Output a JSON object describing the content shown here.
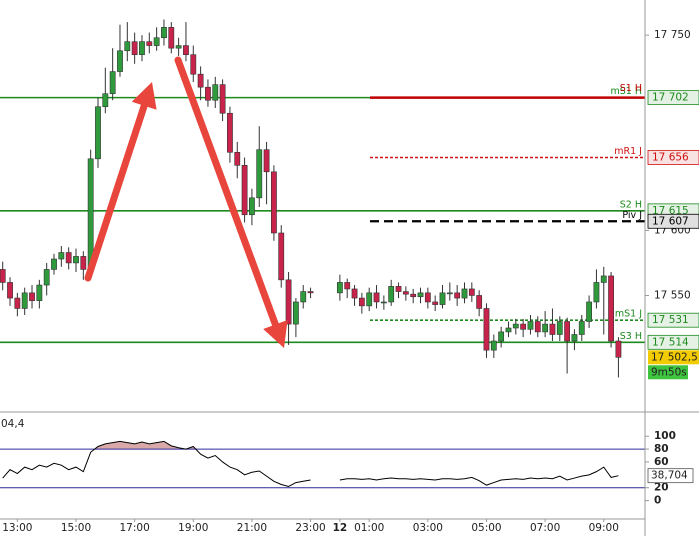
{
  "chart_data": {
    "type": "candlestick",
    "categories": [
      null,
      null,
      "13:00",
      null,
      null,
      null,
      null,
      null,
      null,
      null,
      "15:00",
      null,
      null,
      null,
      null,
      null,
      null,
      null,
      "17:00",
      null,
      null,
      null,
      null,
      null,
      null,
      null,
      "19:00",
      null,
      null,
      null,
      null,
      null,
      null,
      null,
      "21:00",
      null,
      null,
      null,
      null,
      null,
      null,
      null,
      "23:00",
      null,
      null,
      null,
      "12",
      null,
      null,
      null,
      "01:00",
      null,
      null,
      null,
      null,
      null,
      null,
      null,
      "03:00",
      null,
      null,
      null,
      null,
      null,
      null,
      null,
      "05:00",
      null,
      null,
      null,
      null,
      null,
      null,
      null,
      "07:00",
      null,
      null,
      null,
      null,
      null,
      null,
      null,
      "09:00",
      null,
      null
    ],
    "open": [
      17570,
      17560,
      17548,
      17540,
      17552,
      17546,
      17558,
      17570,
      17578,
      17583,
      17575,
      17580,
      17570,
      17655,
      17695,
      17705,
      17722,
      17738,
      17745,
      17735,
      17745,
      17742,
      17748,
      17756,
      17740,
      17742,
      17735,
      17720,
      17710,
      17700,
      17712,
      17690,
      17660,
      17650,
      17612,
      17625,
      17662,
      17645,
      17598,
      17562,
      17528,
      17545,
      17553,
      null,
      null,
      null,
      17552,
      17560,
      17555,
      17548,
      17542,
      17552,
      17545,
      17545,
      17557,
      17553,
      17551,
      17549,
      17552,
      17545,
      17543,
      17552,
      17552,
      17548,
      17555,
      17550,
      17540,
      17508,
      17515,
      17522,
      17525,
      17528,
      17524,
      17530,
      17522,
      17528,
      17520,
      17530,
      17515,
      17520,
      17530,
      17545,
      17560,
      17565,
      17515
    ],
    "high": [
      17576,
      17564,
      17552,
      17556,
      17558,
      17562,
      17575,
      17582,
      17588,
      17587,
      17586,
      17584,
      17662,
      17702,
      17725,
      17740,
      17758,
      17760,
      17752,
      17750,
      17752,
      17756,
      17762,
      17760,
      17748,
      17760,
      17742,
      17726,
      17716,
      17718,
      17716,
      17695,
      17668,
      17656,
      17632,
      17680,
      17668,
      17650,
      17604,
      17568,
      17548,
      17558,
      17556,
      null,
      null,
      null,
      17566,
      17563,
      17558,
      17552,
      17556,
      17558,
      17550,
      17562,
      17560,
      17557,
      17555,
      17556,
      17556,
      17550,
      17558,
      17560,
      17558,
      17560,
      17560,
      17554,
      17544,
      17520,
      17526,
      17530,
      17532,
      17532,
      17535,
      17534,
      17538,
      17540,
      17534,
      17533,
      17524,
      17535,
      17550,
      17570,
      17572,
      17568,
      17518
    ],
    "low": [
      17554,
      17542,
      17534,
      17535,
      17540,
      17540,
      17550,
      17566,
      17572,
      17570,
      17568,
      17562,
      17566,
      17648,
      17690,
      17700,
      17718,
      17730,
      17728,
      17730,
      17736,
      17738,
      17742,
      17736,
      17734,
      17730,
      17714,
      17700,
      17695,
      17694,
      17684,
      17652,
      17640,
      17606,
      17604,
      17618,
      17620,
      17592,
      17556,
      17512,
      17518,
      17540,
      17548,
      null,
      null,
      null,
      17546,
      17548,
      17542,
      17536,
      17538,
      17540,
      17539,
      17542,
      17548,
      17546,
      17544,
      17544,
      17540,
      17538,
      17540,
      17546,
      17542,
      17544,
      17545,
      17534,
      17502,
      17502,
      17510,
      17518,
      17520,
      17518,
      17520,
      17518,
      17518,
      17515,
      17515,
      17490,
      17508,
      17515,
      17525,
      17540,
      17520,
      17510,
      17487
    ],
    "close": [
      17560,
      17548,
      17540,
      17552,
      17546,
      17558,
      17570,
      17578,
      17583,
      17575,
      17580,
      17570,
      17655,
      17695,
      17705,
      17722,
      17738,
      17745,
      17735,
      17745,
      17742,
      17748,
      17756,
      17740,
      17742,
      17735,
      17720,
      17710,
      17700,
      17712,
      17690,
      17660,
      17650,
      17612,
      17625,
      17662,
      17645,
      17598,
      17562,
      17528,
      17545,
      17553,
      17552,
      null,
      null,
      null,
      17560,
      17555,
      17548,
      17542,
      17552,
      17545,
      17545,
      17557,
      17553,
      17551,
      17549,
      17552,
      17545,
      17543,
      17552,
      17552,
      17548,
      17555,
      17550,
      17540,
      17508,
      17515,
      17522,
      17525,
      17528,
      17524,
      17530,
      17522,
      17528,
      17520,
      17530,
      17515,
      17520,
      17530,
      17545,
      17560,
      17565,
      17515,
      17502.5
    ],
    "up_color": "#2e9a3c",
    "down_color": "#c8234a",
    "ylim": [
      17462,
      17777
    ],
    "yticks": [
      {
        "value": 17750,
        "label": "17 750"
      },
      {
        "value": 17600,
        "label": "17 600"
      },
      {
        "value": 17550,
        "label": "17 550"
      }
    ],
    "levels": [
      {
        "name": "mS1 H",
        "value": 17702,
        "color": "#1d8a1d",
        "style": "solid",
        "span": "all",
        "tag": "17 702"
      },
      {
        "name": "S1 H",
        "value": 17702,
        "color": "#c00000",
        "style": "solid",
        "span": "day"
      },
      {
        "name": "mR1 J",
        "value": 17656,
        "color": "#d01010",
        "style": "dashed",
        "span": "day",
        "tag": "17 656"
      },
      {
        "name": "S2 H",
        "value": 17615,
        "color": "#1d8a1d",
        "style": "solid",
        "span": "all",
        "tag": "17 615"
      },
      {
        "name": "Piv J",
        "value": 17607,
        "color": "#000000",
        "style": "dashed",
        "span": "day",
        "tag": "17 607"
      },
      {
        "name": "mS1 J",
        "value": 17531,
        "color": "#1d8a1d",
        "style": "dashed",
        "span": "day",
        "tag": "17 531"
      },
      {
        "name": "S3 H",
        "value": 17514,
        "color": "#1d8a1d",
        "style": "solid",
        "span": "all",
        "tag": "17 514"
      }
    ],
    "last_label": "17 502,5",
    "countdown": "9m50s",
    "oscillator": {
      "type": "line",
      "label": "04,4",
      "values": [
        35,
        48,
        42,
        52,
        48,
        55,
        52,
        58,
        55,
        48,
        52,
        45,
        75,
        84,
        88,
        90,
        92,
        90,
        88,
        91,
        88,
        90,
        92,
        85,
        82,
        80,
        84,
        72,
        66,
        70,
        60,
        52,
        48,
        40,
        44,
        46,
        38,
        30,
        25,
        22,
        28,
        30,
        32,
        null,
        null,
        null,
        32,
        34,
        34,
        33,
        34,
        32,
        34,
        35,
        34,
        34,
        33,
        34,
        33,
        32,
        34,
        34,
        33,
        34,
        36,
        31,
        24,
        28,
        32,
        33,
        34,
        33,
        35,
        34,
        35,
        34,
        38,
        32,
        35,
        38,
        40,
        45,
        52,
        36,
        38.704
      ],
      "value_label": "38,704",
      "ylim": [
        -27,
        136
      ],
      "yticks": [
        0,
        20,
        60,
        80,
        100
      ],
      "bands": [
        80,
        20
      ],
      "color": "#000000",
      "band_color": "#2b2b9a",
      "fill_color": "#d9a9a9"
    }
  }
}
